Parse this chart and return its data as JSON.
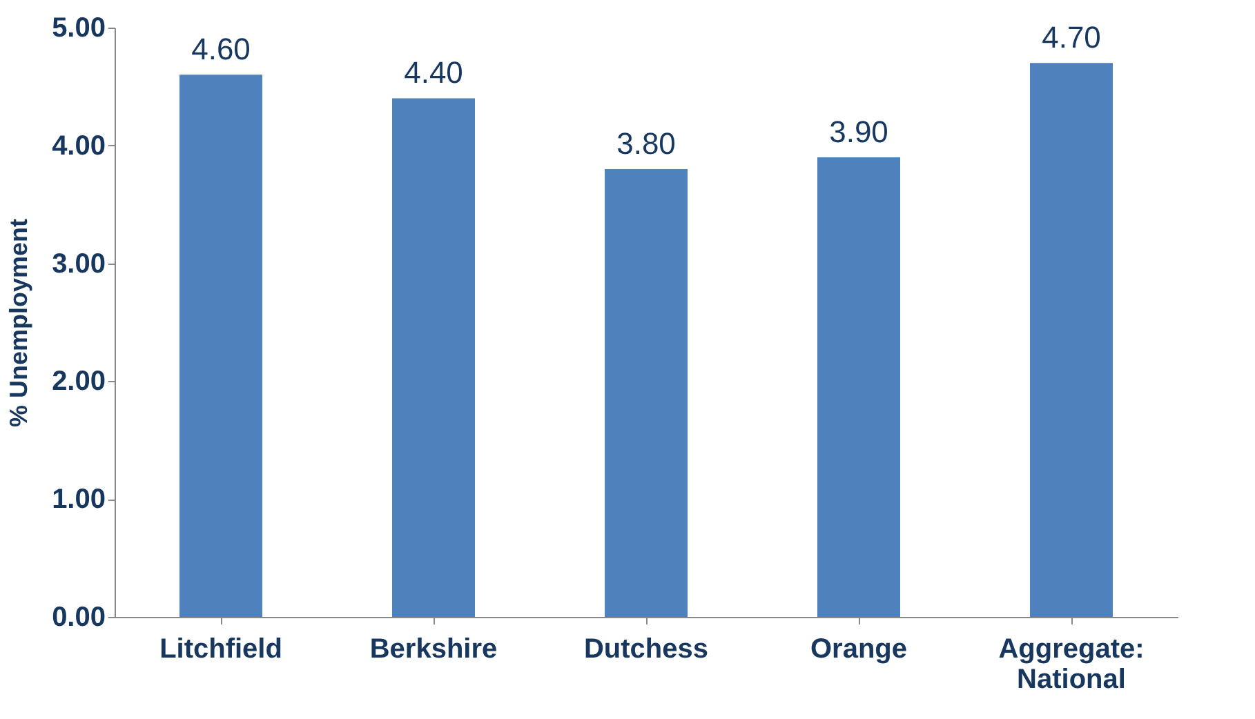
{
  "chart_data": {
    "type": "bar",
    "ylabel": "% Unemployment",
    "categories": [
      "Litchfield",
      "Berkshire",
      "Dutchess",
      "Orange",
      "Aggregate: National"
    ],
    "values": [
      4.6,
      4.4,
      3.8,
      3.9,
      4.7
    ],
    "value_labels": [
      "4.60",
      "4.40",
      "3.80",
      "3.90",
      "4.70"
    ],
    "color": "#4f81bd",
    "ylim": [
      0,
      5
    ],
    "yticks": [
      {
        "value": 0,
        "label": "0.00"
      },
      {
        "value": 1,
        "label": "1.00"
      },
      {
        "value": 2,
        "label": "2.00"
      },
      {
        "value": 3,
        "label": "3.00"
      },
      {
        "value": 4,
        "label": "4.00"
      },
      {
        "value": 5,
        "label": "5.00"
      }
    ],
    "grid": false
  }
}
